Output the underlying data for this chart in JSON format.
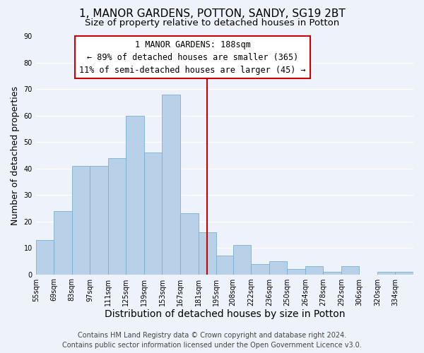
{
  "title": "1, MANOR GARDENS, POTTON, SANDY, SG19 2BT",
  "subtitle": "Size of property relative to detached houses in Potton",
  "xlabel": "Distribution of detached houses by size in Potton",
  "ylabel": "Number of detached properties",
  "bin_labels": [
    "55sqm",
    "69sqm",
    "83sqm",
    "97sqm",
    "111sqm",
    "125sqm",
    "139sqm",
    "153sqm",
    "167sqm",
    "181sqm",
    "195sqm",
    "208sqm",
    "222sqm",
    "236sqm",
    "250sqm",
    "264sqm",
    "278sqm",
    "292sqm",
    "306sqm",
    "320sqm",
    "334sqm"
  ],
  "bin_edges": [
    55,
    69,
    83,
    97,
    111,
    125,
    139,
    153,
    167,
    181,
    195,
    208,
    222,
    236,
    250,
    264,
    278,
    292,
    306,
    320,
    334,
    348
  ],
  "bar_heights": [
    13,
    24,
    41,
    41,
    44,
    60,
    46,
    68,
    23,
    16,
    7,
    11,
    4,
    5,
    2,
    3,
    1,
    3,
    0,
    1,
    1
  ],
  "bar_color": "#b8d0e8",
  "bar_edge_color": "#7aafd4",
  "property_size": 188,
  "vline_color": "#cc0000",
  "annotation_box_color": "#cc0000",
  "annotation_line1": "1 MANOR GARDENS: 188sqm",
  "annotation_line2": "← 89% of detached houses are smaller (365)",
  "annotation_line3": "11% of semi-detached houses are larger (45) →",
  "ylim": [
    0,
    90
  ],
  "yticks": [
    0,
    10,
    20,
    30,
    40,
    50,
    60,
    70,
    80,
    90
  ],
  "footer_line1": "Contains HM Land Registry data © Crown copyright and database right 2024.",
  "footer_line2": "Contains public sector information licensed under the Open Government Licence v3.0.",
  "background_color": "#eef2fa",
  "grid_color": "#ffffff",
  "title_fontsize": 11,
  "subtitle_fontsize": 9.5,
  "xlabel_fontsize": 10,
  "ylabel_fontsize": 9,
  "annotation_fontsize": 8.5,
  "footer_fontsize": 7,
  "tick_fontsize": 7
}
